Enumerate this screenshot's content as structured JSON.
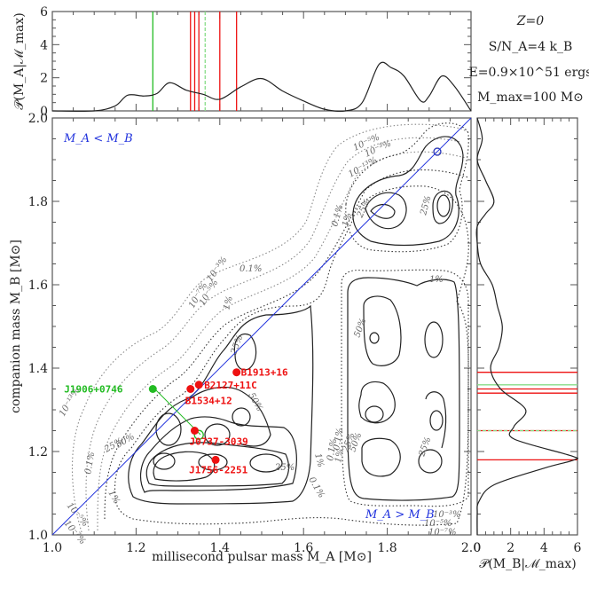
{
  "chart_data": [
    {
      "id": "main",
      "type": "contour",
      "title": "",
      "xlabel": "millisecond pulsar mass M_A [M⊙]",
      "ylabel": "companion mass M_B [M⊙]",
      "xlim": [
        1.0,
        2.0
      ],
      "ylim": [
        1.0,
        2.0
      ],
      "xticks": [
        "1.0",
        "1.2",
        "1.4",
        "1.6",
        "1.8",
        "2.0"
      ],
      "yticks": [
        "1.0",
        "1.2",
        "1.4",
        "1.6",
        "1.8",
        "2.0"
      ],
      "contour_levels": [
        "10^-13%",
        "10^-7%",
        "10^-5%",
        "10^-3%",
        "0.1%",
        "1%",
        "25%",
        "50%"
      ],
      "diagonal_line": {
        "from": [
          1.0,
          1.0
        ],
        "to": [
          2.0,
          2.0
        ],
        "color": "#2233dd"
      },
      "region_labels": [
        {
          "text": "M_A < M_B",
          "x": 1.03,
          "y": 1.97
        },
        {
          "text": "M_A > M_B",
          "x": 1.78,
          "y": 1.06
        }
      ],
      "points": [
        {
          "name": "J1906+0746",
          "x": 1.24,
          "y": 1.35,
          "color": "#22bb22",
          "marker": "filled-circle"
        },
        {
          "name": "J1906+0746 (swapped)",
          "x": 1.35,
          "y": 1.24,
          "color": "#22bb22",
          "marker": "open-circle"
        },
        {
          "name": "B1534+12",
          "x": 1.33,
          "y": 1.35,
          "color": "#ee1111",
          "marker": "filled-circle"
        },
        {
          "name": "B2127+11C",
          "x": 1.35,
          "y": 1.36,
          "color": "#ee1111",
          "marker": "filled-circle"
        },
        {
          "name": "B1913+16",
          "x": 1.44,
          "y": 1.39,
          "color": "#ee1111",
          "marker": "filled-circle"
        },
        {
          "name": "J0737-3039",
          "x": 1.34,
          "y": 1.25,
          "color": "#ee1111",
          "marker": "filled-circle"
        },
        {
          "name": "J1756-2251",
          "x": 1.39,
          "y": 1.18,
          "color": "#ee1111",
          "marker": "filled-circle"
        }
      ],
      "peaks": [
        {
          "label": "peak",
          "x": 1.95,
          "y": 1.95
        },
        {
          "label": "peak",
          "x": 1.8,
          "y": 1.79
        },
        {
          "label": "peak",
          "x": 1.86,
          "y": 1.79
        },
        {
          "label": "peak",
          "x": 1.8,
          "y": 1.48
        },
        {
          "label": "peak",
          "x": 1.8,
          "y": 1.33
        },
        {
          "label": "peak",
          "x": 1.8,
          "y": 1.21
        },
        {
          "label": "peak",
          "x": 1.93,
          "y": 1.22
        },
        {
          "label": "peak",
          "x": 1.28,
          "y": 1.31
        },
        {
          "label": "peak",
          "x": 1.17,
          "y": 1.18
        },
        {
          "label": "peak",
          "x": 1.45,
          "y": 1.25
        }
      ]
    },
    {
      "id": "top",
      "type": "line",
      "ylabel": "P(M_A | M_max)",
      "xlim": [
        1.0,
        2.0
      ],
      "ylim": [
        0,
        6
      ],
      "yticks": [
        "0",
        "2",
        "4",
        "6"
      ],
      "x": [
        1.0,
        1.1,
        1.15,
        1.18,
        1.22,
        1.25,
        1.28,
        1.32,
        1.36,
        1.4,
        1.45,
        1.5,
        1.55,
        1.6,
        1.65,
        1.7,
        1.74,
        1.78,
        1.81,
        1.84,
        1.88,
        1.9,
        1.93,
        1.96,
        2.0
      ],
      "values": [
        0,
        0,
        0.3,
        0.95,
        0.9,
        1.05,
        1.7,
        1.25,
        1.0,
        0.7,
        1.45,
        1.95,
        1.2,
        0.6,
        0.1,
        0.0,
        0.5,
        2.8,
        2.6,
        2.1,
        0.6,
        0.9,
        2.1,
        1.5,
        0
      ],
      "vlines": [
        {
          "x": 1.24,
          "color": "#22bb22",
          "style": "solid"
        },
        {
          "x": 1.33,
          "color": "#ee1111",
          "style": "solid"
        },
        {
          "x": 1.34,
          "color": "#ee1111",
          "style": "solid"
        },
        {
          "x": 1.35,
          "color": "#ee1111",
          "style": "solid"
        },
        {
          "x": 1.365,
          "color": "#88dd88",
          "style": "dashed"
        },
        {
          "x": 1.4,
          "color": "#ee1111",
          "style": "solid"
        },
        {
          "x": 1.44,
          "color": "#ee1111",
          "style": "solid"
        }
      ]
    },
    {
      "id": "right",
      "type": "line",
      "xlabel": "P(M_B | M_max)",
      "xlim": [
        0,
        6
      ],
      "ylim": [
        1.0,
        2.0
      ],
      "xticks": [
        "0",
        "2",
        "4",
        "6"
      ],
      "y": [
        2.0,
        1.95,
        1.9,
        1.85,
        1.8,
        1.77,
        1.74,
        1.7,
        1.65,
        1.6,
        1.55,
        1.5,
        1.45,
        1.4,
        1.35,
        1.3,
        1.26,
        1.23,
        1.19,
        1.18,
        1.16,
        1.12,
        1.08,
        1.05,
        1.0
      ],
      "values": [
        0,
        0.3,
        0.0,
        0.5,
        1.0,
        0.5,
        0.0,
        0.0,
        0.2,
        0.9,
        1.2,
        1.5,
        1.3,
        0.8,
        1.4,
        2.9,
        2.2,
        2.2,
        5.6,
        5.8,
        4.0,
        1.0,
        0.1,
        0.0,
        0
      ],
      "hlines": [
        {
          "y": 1.18,
          "color": "#ee1111"
        },
        {
          "y": 1.25,
          "color": "#ee1111"
        },
        {
          "y": 1.25,
          "color": "#88dd88",
          "style": "dashed"
        },
        {
          "y": 1.34,
          "color": "#ee1111"
        },
        {
          "y": 1.35,
          "color": "#ee1111"
        },
        {
          "y": 1.36,
          "color": "#88dd88"
        },
        {
          "y": 1.39,
          "color": "#ee1111"
        }
      ]
    }
  ],
  "annotations": {
    "line1": "Z=0",
    "line2": "S/N_A=4 k_B",
    "line3": "E=0.9×10^51 ergs",
    "line4": "M_max=100 M⊙"
  },
  "axis_text": {
    "top_ylabel": "𝒫(M_A|ℳ_max)",
    "right_xlabel": "𝒫(M_B|ℳ_max)",
    "main_xlabel": "millisecond pulsar mass M_A [M⊙]",
    "main_ylabel": "companion mass M_B [M⊙]",
    "region_lt": "M_A < M_B",
    "region_gt": "M_A > M_B"
  },
  "colors": {
    "observed": "#ee1111",
    "j1906": "#22bb22",
    "diagonal": "#2233dd",
    "curve": "#222222"
  }
}
